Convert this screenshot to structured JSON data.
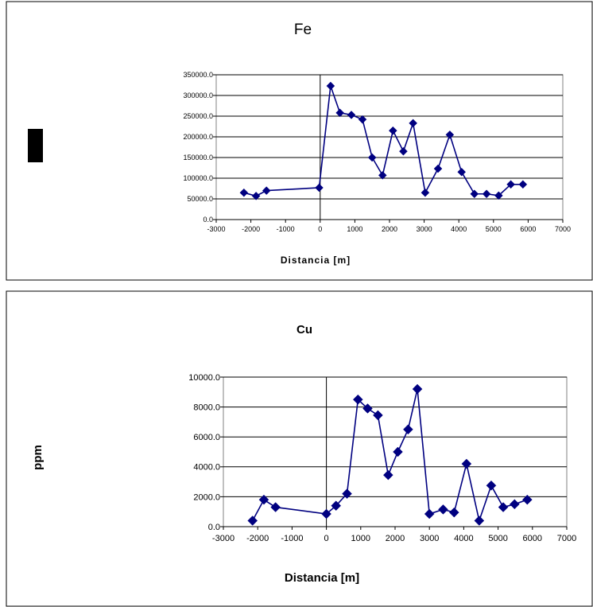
{
  "chart_data": [
    {
      "type": "line",
      "title": "Fe",
      "xlabel": "Distancia [m]",
      "ylabel": "",
      "xlim": [
        -3000,
        7000
      ],
      "ylim": [
        0,
        350000
      ],
      "x_ticks": [
        -3000,
        -2000,
        -1000,
        0,
        1000,
        2000,
        3000,
        4000,
        5000,
        6000,
        7000
      ],
      "y_ticks": [
        "0.0",
        "50000.0",
        "100000.0",
        "150000.0",
        "200000.0",
        "250000.0",
        "300000.0",
        "350000.0"
      ],
      "grid": true,
      "marker": "diamond",
      "color": "#000080",
      "series": [
        {
          "x": [
            -2200,
            -1850,
            -1550,
            -30,
            300,
            570,
            900,
            1220,
            1500,
            1800,
            2100,
            2400,
            2680,
            3030,
            3400,
            3740,
            4080,
            4450,
            4800,
            5150,
            5500,
            5850
          ],
          "y": [
            65000,
            57000,
            70000,
            77000,
            323000,
            258000,
            253000,
            242000,
            150000,
            107000,
            215000,
            165000,
            233000,
            65000,
            123000,
            205000,
            115000,
            62000,
            62000,
            58000,
            85000,
            85000
          ]
        }
      ]
    },
    {
      "type": "line",
      "title": "Cu",
      "xlabel": "Distancia [m]",
      "ylabel": "ppm",
      "xlim": [
        -3000,
        7000
      ],
      "ylim": [
        0,
        10000
      ],
      "x_ticks": [
        -3000,
        -2000,
        -1000,
        0,
        1000,
        2000,
        3000,
        4000,
        5000,
        6000,
        7000
      ],
      "y_ticks": [
        "0.0",
        "2000.0",
        "4000.0",
        "6000.0",
        "8000.0",
        "10000.0"
      ],
      "grid": true,
      "marker": "diamond",
      "color": "#000080",
      "series": [
        {
          "x": [
            -2150,
            -1820,
            -1480,
            0,
            280,
            600,
            920,
            1200,
            1500,
            1800,
            2080,
            2380,
            2650,
            3000,
            3400,
            3720,
            4080,
            4450,
            4800,
            5150,
            5480,
            5850
          ],
          "y": [
            400,
            1800,
            1300,
            850,
            1400,
            2200,
            8500,
            7900,
            7450,
            3450,
            5000,
            6500,
            9200,
            850,
            1150,
            950,
            4200,
            400,
            2750,
            1300,
            1500,
            1800
          ]
        }
      ]
    }
  ]
}
